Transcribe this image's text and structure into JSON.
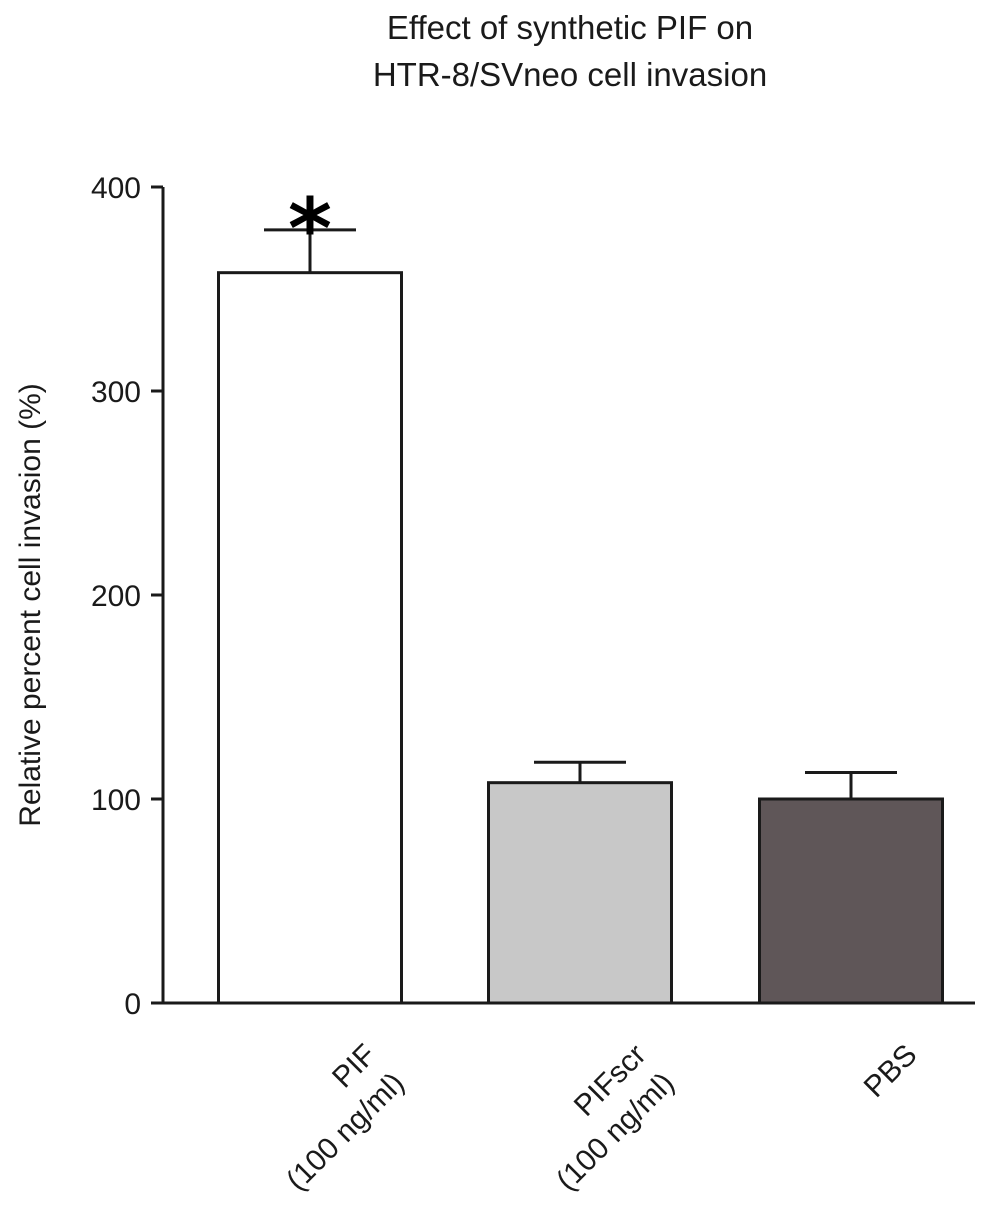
{
  "chart_data": {
    "type": "bar",
    "title": [
      "Effect of synthetic PIF on",
      "HTR-8/SVneo cell invasion"
    ],
    "xlabel": "",
    "ylabel": "Relative percent cell invasion (%)",
    "ylim": [
      0,
      400
    ],
    "yticks": [
      0,
      100,
      200,
      300,
      400
    ],
    "grid": false,
    "categories": [
      [
        "PIF",
        "(100 ng/ml)"
      ],
      [
        "PIFscr",
        "(100 ng/ml)"
      ],
      [
        "PBS"
      ]
    ],
    "values": [
      358,
      108,
      100
    ],
    "error": [
      21,
      10,
      13
    ],
    "colors": [
      "#ffffff",
      "#c8c8c8",
      "#5f5658"
    ],
    "annotations": [
      "*",
      "",
      ""
    ]
  }
}
